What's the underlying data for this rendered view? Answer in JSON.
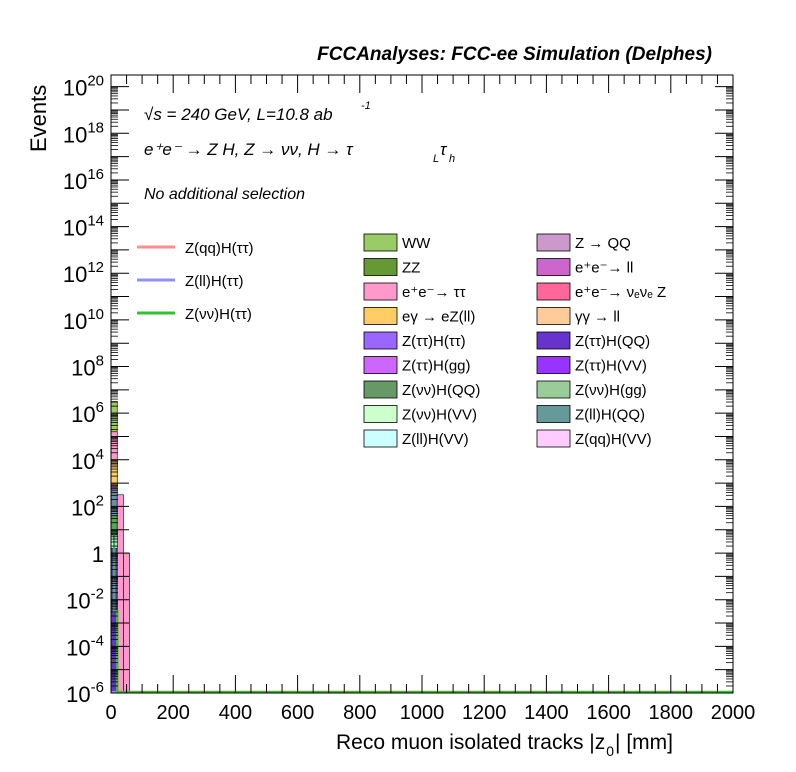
{
  "chart_data": {
    "type": "bar",
    "header": "FCCAnalyses: FCC-ee Simulation (Delphes)",
    "annotations": {
      "energy_line": "√s = 240 GeV, L=10.8 ab",
      "energy_sup": "-1",
      "process": "e⁺e⁻ → Z H, Z → νν, H → τ",
      "process_sub1": "L",
      "process_tau2": "τ",
      "process_sub2": "h",
      "selection": "No additional selection"
    },
    "xlabel": "Reco muon isolated tracks |z",
    "xlabel_sub": "0",
    "xlabel_tail": "| [mm]",
    "ylabel": "Events",
    "xlim": [
      0,
      2000
    ],
    "ylim_log10": [
      -6,
      20.5
    ],
    "log_y": true,
    "x_ticks": [
      "0",
      "200",
      "400",
      "600",
      "800",
      "1000",
      "1200",
      "1400",
      "1600",
      "1800",
      "2000"
    ],
    "x_tick_values": [
      0,
      200,
      400,
      600,
      800,
      1000,
      1200,
      1400,
      1600,
      1800,
      2000
    ],
    "y_ticks": [
      {
        "base": "10",
        "exp": "-6",
        "value": -6
      },
      {
        "base": "10",
        "exp": "-4",
        "value": -4
      },
      {
        "base": "10",
        "exp": "-2",
        "value": -2
      },
      {
        "base": "1",
        "exp": "",
        "value": 0
      },
      {
        "base": "10",
        "exp": "2",
        "value": 2
      },
      {
        "base": "10",
        "exp": "4",
        "value": 4
      },
      {
        "base": "10",
        "exp": "6",
        "value": 6
      },
      {
        "base": "10",
        "exp": "8",
        "value": 8
      },
      {
        "base": "10",
        "exp": "10",
        "value": 10
      },
      {
        "base": "10",
        "exp": "12",
        "value": 12
      },
      {
        "base": "10",
        "exp": "14",
        "value": 14
      },
      {
        "base": "10",
        "exp": "16",
        "value": 16
      },
      {
        "base": "10",
        "exp": "18",
        "value": 18
      },
      {
        "base": "10",
        "exp": "20",
        "value": 20
      }
    ],
    "stack_bins": [
      {
        "x0": 0,
        "x1": 20,
        "segments": [
          {
            "series": "WW",
            "log_top": 6.5
          },
          {
            "series": "e⁺e⁻→ ττ",
            "log_top": 5.2
          },
          {
            "series": "eγ → eZ(ll)",
            "log_top": 4.0
          },
          {
            "series": "Z(ττ)H(ττ)",
            "log_top": 2.8
          },
          {
            "series": "Z(νν)H(QQ)",
            "log_top": 1.6
          },
          {
            "series": "Z(ll)H(VV)",
            "log_top": 0.8
          },
          {
            "series": "Z(ττ)H(QQ)",
            "log_top": 0.2
          },
          {
            "series": "Z(νν)H(gg)",
            "log_top": -6
          }
        ]
      },
      {
        "x0": 20,
        "x1": 40,
        "segments": [
          {
            "series": "e⁺e⁻→ ττ",
            "log_top": 2.5
          },
          {
            "series": "WW",
            "log_top": -6
          }
        ]
      },
      {
        "x0": 40,
        "x1": 60,
        "segments": [
          {
            "series": "e⁺e⁻→ ττ",
            "log_top": 0.0
          }
        ]
      }
    ],
    "signal_lines": [
      {
        "name": "Z(qq)H(ττ)",
        "color": "#ff8f8f",
        "log_values": [
          -6
        ]
      },
      {
        "name": "Z(ll)H(ττ)",
        "color": "#8f8fff",
        "log_values": [
          -6
        ]
      },
      {
        "name": "Z(νν)H(ττ)",
        "color": "#33c133",
        "log_values": [
          2.6,
          -2.5
        ]
      }
    ],
    "legend_signals": [
      {
        "label": "Z(qq)H(ττ)",
        "color": "#ff8f8f"
      },
      {
        "label": "Z(ll)H(ττ)",
        "color": "#8f8fff"
      },
      {
        "label": "Z(νν)H(ττ)",
        "color": "#33c133"
      }
    ],
    "legend_backgrounds": [
      {
        "label": "WW",
        "color": "#99cc66"
      },
      {
        "label": "Z → QQ",
        "color": "#cc99cc"
      },
      {
        "label": "ZZ",
        "color": "#669933"
      },
      {
        "label": "e⁺e⁻→ ll",
        "color": "#cc66cc"
      },
      {
        "label": "e⁺e⁻→ ττ",
        "color": "#ff99cc"
      },
      {
        "label": "e⁺e⁻→ νₑνₑ Z",
        "color": "#ff6699"
      },
      {
        "label": "eγ → eZ(ll)",
        "color": "#ffcc66"
      },
      {
        "label": "γγ → ll",
        "color": "#ffcc99"
      },
      {
        "label": "Z(ττ)H(ττ)",
        "color": "#9966ff"
      },
      {
        "label": "Z(ττ)H(QQ)",
        "color": "#6633cc"
      },
      {
        "label": "Z(ττ)H(gg)",
        "color": "#cc66ff"
      },
      {
        "label": "Z(ττ)H(VV)",
        "color": "#9933ff"
      },
      {
        "label": "Z(νν)H(QQ)",
        "color": "#669966"
      },
      {
        "label": "Z(νν)H(gg)",
        "color": "#99cc99"
      },
      {
        "label": "Z(νν)H(VV)",
        "color": "#ccffcc"
      },
      {
        "label": "Z(ll)H(QQ)",
        "color": "#669999"
      },
      {
        "label": "Z(ll)H(VV)",
        "color": "#ccffff"
      },
      {
        "label": "Z(qq)H(VV)",
        "color": "#ffccff"
      }
    ]
  }
}
